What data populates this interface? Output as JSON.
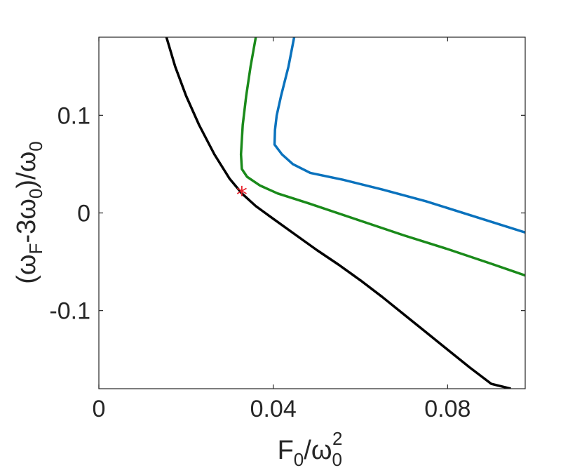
{
  "chart_data": {
    "type": "line",
    "title": "",
    "xlabel": {
      "base": "F",
      "base_sub": "0",
      "slash": "/",
      "denom": "ω",
      "denom_sub": "0",
      "denom_sup": "2"
    },
    "ylabel": {
      "open": "(",
      "w1": "ω",
      "w1_sub": "F",
      "middle": "-3",
      "w2": "ω",
      "w2_sub": "0",
      "close": ")/",
      "w3": "ω",
      "w3_sub": "0"
    },
    "xlim": [
      0,
      0.0978
    ],
    "ylim": [
      -0.18,
      0.18
    ],
    "x_ticks": [
      {
        "value": 0,
        "label": "0"
      },
      {
        "value": 0.04,
        "label": "0.04"
      },
      {
        "value": 0.08,
        "label": "0.08"
      }
    ],
    "y_ticks": [
      {
        "value": 0.1,
        "label": "0.1"
      },
      {
        "value": 0,
        "label": "0"
      },
      {
        "value": -0.1,
        "label": "-0.1"
      }
    ],
    "grid": false,
    "box": true,
    "series": [
      {
        "color": "#000000",
        "points": [
          [
            0.0155,
            0.18
          ],
          [
            0.0175,
            0.15
          ],
          [
            0.02,
            0.12
          ],
          [
            0.023,
            0.09
          ],
          [
            0.0265,
            0.06
          ],
          [
            0.03,
            0.035
          ],
          [
            0.0328,
            0.02
          ],
          [
            0.036,
            0.007
          ],
          [
            0.04,
            -0.006
          ],
          [
            0.045,
            -0.022
          ],
          [
            0.05,
            -0.038
          ],
          [
            0.055,
            -0.053
          ],
          [
            0.06,
            -0.069
          ],
          [
            0.065,
            -0.086
          ],
          [
            0.07,
            -0.104
          ],
          [
            0.075,
            -0.122
          ],
          [
            0.08,
            -0.14
          ],
          [
            0.085,
            -0.158
          ],
          [
            0.09,
            -0.175
          ],
          [
            0.0945,
            -0.18
          ]
        ]
      },
      {
        "color": "#1a8a1a",
        "points": [
          [
            0.036,
            0.18
          ],
          [
            0.0348,
            0.15
          ],
          [
            0.0338,
            0.12
          ],
          [
            0.033,
            0.09
          ],
          [
            0.0326,
            0.06
          ],
          [
            0.0328,
            0.045
          ],
          [
            0.034,
            0.037
          ],
          [
            0.037,
            0.028
          ],
          [
            0.041,
            0.02
          ],
          [
            0.048,
            0.01
          ],
          [
            0.06,
            -0.008
          ],
          [
            0.07,
            -0.023
          ],
          [
            0.08,
            -0.037
          ],
          [
            0.09,
            -0.052
          ],
          [
            0.0978,
            -0.064
          ]
        ]
      },
      {
        "color": "#0a72bd",
        "points": [
          [
            0.0448,
            0.18
          ],
          [
            0.0435,
            0.15
          ],
          [
            0.0418,
            0.12
          ],
          [
            0.0408,
            0.1
          ],
          [
            0.0404,
            0.085
          ],
          [
            0.0403,
            0.07
          ],
          [
            0.042,
            0.06
          ],
          [
            0.0445,
            0.05
          ],
          [
            0.0485,
            0.041
          ],
          [
            0.056,
            0.034
          ],
          [
            0.065,
            0.024
          ],
          [
            0.075,
            0.012
          ],
          [
            0.085,
            -0.002
          ],
          [
            0.0978,
            -0.02
          ]
        ]
      }
    ],
    "markers": [
      {
        "x": 0.0328,
        "y": 0.02,
        "symbol": "*",
        "color": "#e8232d"
      }
    ]
  }
}
